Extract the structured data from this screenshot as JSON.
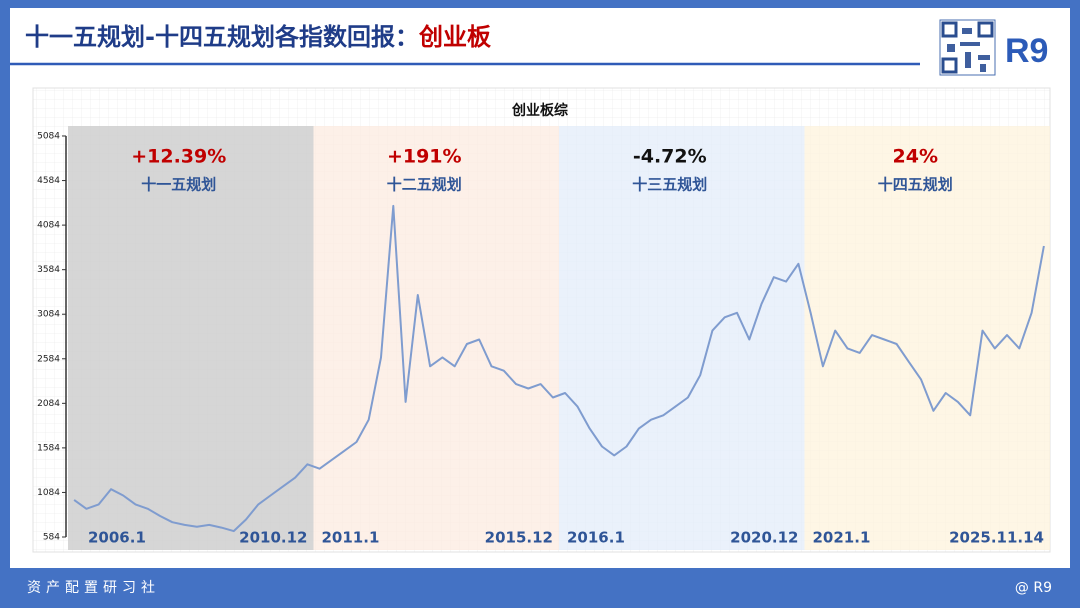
{
  "header": {
    "title": "十一五规划-十四五规划各指数回报：",
    "highlight": "创业板",
    "logo": "R9"
  },
  "footer": {
    "left": "资产配置研习社",
    "right": "@ R9"
  },
  "chart_data": {
    "type": "line",
    "title": "创业板综",
    "color": "#7f9ccf",
    "x": [
      "2006.1",
      "2006.4",
      "2006.7",
      "2006.10",
      "2007.1",
      "2007.4",
      "2007.7",
      "2007.10",
      "2008.1",
      "2008.4",
      "2008.7",
      "2008.10",
      "2009.1",
      "2009.4",
      "2009.7",
      "2009.10",
      "2010.1",
      "2010.4",
      "2010.7",
      "2010.10",
      "2011.1",
      "2011.4",
      "2011.7",
      "2011.10",
      "2012.1",
      "2012.4",
      "2012.7",
      "2012.10",
      "2013.1",
      "2013.4",
      "2013.7",
      "2013.10",
      "2014.1",
      "2014.4",
      "2014.7",
      "2014.10",
      "2015.1",
      "2015.4",
      "2015.7",
      "2015.10",
      "2016.1",
      "2016.4",
      "2016.7",
      "2016.10",
      "2017.1",
      "2017.4",
      "2017.7",
      "2017.10",
      "2018.1",
      "2018.4",
      "2018.7",
      "2018.10",
      "2019.1",
      "2019.4",
      "2019.7",
      "2019.10",
      "2020.1",
      "2020.4",
      "2020.7",
      "2020.10",
      "2021.1",
      "2021.4",
      "2021.7",
      "2021.10",
      "2022.1",
      "2022.4",
      "2022.7",
      "2022.10",
      "2023.1",
      "2023.4",
      "2023.7",
      "2023.10",
      "2024.1",
      "2024.4",
      "2024.7",
      "2024.10",
      "2025.1",
      "2025.4",
      "2025.7",
      "2025.10"
    ],
    "values": [
      1000,
      900,
      950,
      1120,
      1050,
      950,
      900,
      820,
      750,
      720,
      700,
      720,
      690,
      650,
      780,
      950,
      1050,
      1150,
      1250,
      1400,
      1350,
      1450,
      1550,
      1650,
      1900,
      2600,
      4300,
      2100,
      3300,
      2500,
      2600,
      2500,
      2750,
      2800,
      2500,
      2450,
      2300,
      2250,
      2300,
      2150,
      2200,
      2050,
      1800,
      1600,
      1500,
      1600,
      1800,
      1900,
      1950,
      2050,
      2150,
      2400,
      2900,
      3050,
      3100,
      2800,
      3200,
      3500,
      3450,
      3650,
      3100,
      2500,
      2900,
      2700,
      2650,
      2850,
      2800,
      2750,
      2550,
      2350,
      2000,
      2200,
      2100,
      1950,
      2900,
      2700,
      2850,
      2700,
      3100,
      3850
    ],
    "ylim": [
      584,
      5084
    ],
    "yticks": [
      584,
      1084,
      1584,
      2084,
      2584,
      3084,
      3584,
      4084,
      4584,
      5084
    ],
    "grid": false,
    "periods": [
      {
        "name": "十一五规划",
        "return": "+12.39%",
        "return_color": "#c00000",
        "start": "2006.1",
        "end": "2010.12",
        "color": "#cfcfcf"
      },
      {
        "name": "十二五规划",
        "return": "+191%",
        "return_color": "#c00000",
        "start": "2011.1",
        "end": "2015.12",
        "color": "#fcebe0"
      },
      {
        "name": "十三五规划",
        "return": "-4.72%",
        "return_color": "#111111",
        "start": "2016.1",
        "end": "2020.12",
        "color": "#e3ecfa"
      },
      {
        "name": "十四五规划",
        "return": "24%",
        "return_color": "#c00000",
        "start": "2021.1",
        "end": "2025.11.14",
        "color": "#fdf3dc"
      }
    ]
  }
}
